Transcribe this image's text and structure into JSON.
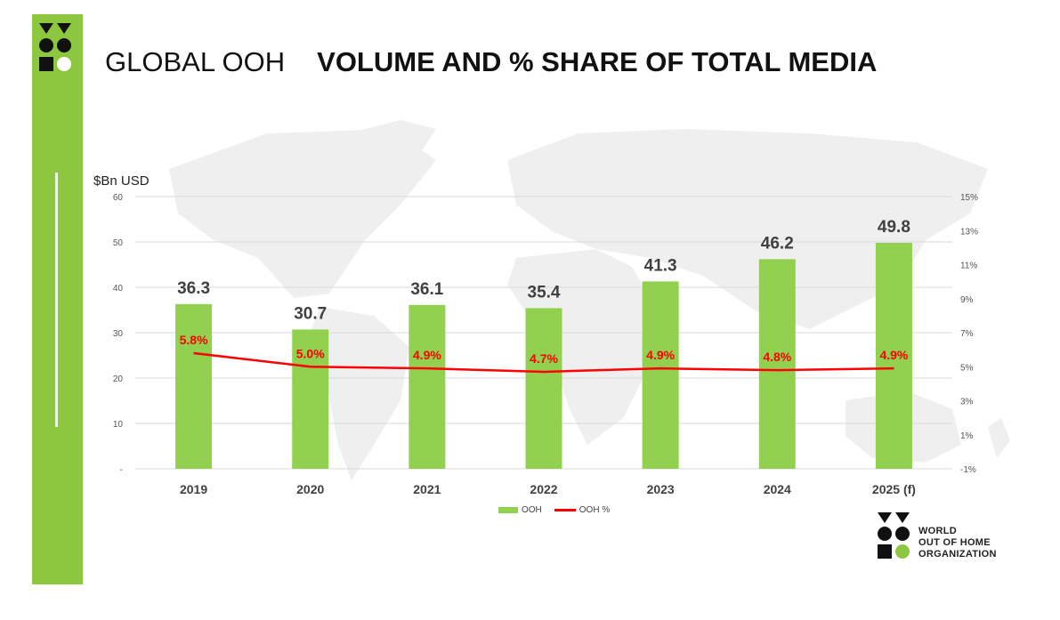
{
  "title": {
    "prefix": "GLOBAL OOH",
    "main": "VOLUME AND  % SHARE OF TOTAL MEDIA"
  },
  "unit_label": "$Bn USD",
  "organization": {
    "line1": "WORLD",
    "line2": "OUT OF HOME",
    "line3": "ORGANIZATION"
  },
  "colors": {
    "band": "#8dc63f",
    "bar": "#92d050",
    "line": "#ff0000",
    "label": "#ff0000"
  },
  "chart_data": {
    "type": "bar",
    "categories": [
      "2019",
      "2020",
      "2021",
      "2022",
      "2023",
      "2024",
      "2025 (f)"
    ],
    "series": [
      {
        "name": "OOH",
        "type": "bar",
        "axis": "left",
        "values": [
          36.3,
          30.7,
          36.1,
          35.4,
          41.3,
          46.2,
          49.8
        ],
        "labels": [
          "36.3",
          "30.7",
          "36.1",
          "35.4",
          "41.3",
          "46.2",
          "49.8"
        ]
      },
      {
        "name": "OOH %",
        "type": "line",
        "axis": "right",
        "values": [
          5.8,
          5.0,
          4.9,
          4.7,
          4.9,
          4.8,
          4.9
        ],
        "labels": [
          "5.8%",
          "5.0%",
          "4.9%",
          "4.7%",
          "4.9%",
          "4.8%",
          "4.9%"
        ]
      }
    ],
    "y_left": {
      "ylim": [
        0,
        60
      ],
      "ticks": [
        "-",
        "10",
        "20",
        "30",
        "40",
        "50",
        "60"
      ]
    },
    "y_right": {
      "ylim": [
        -1,
        15
      ],
      "ticks": [
        "-1%",
        "1%",
        "3%",
        "5%",
        "7%",
        "9%",
        "11%",
        "13%",
        "15%"
      ]
    },
    "grid": true,
    "legend": "bottom"
  }
}
